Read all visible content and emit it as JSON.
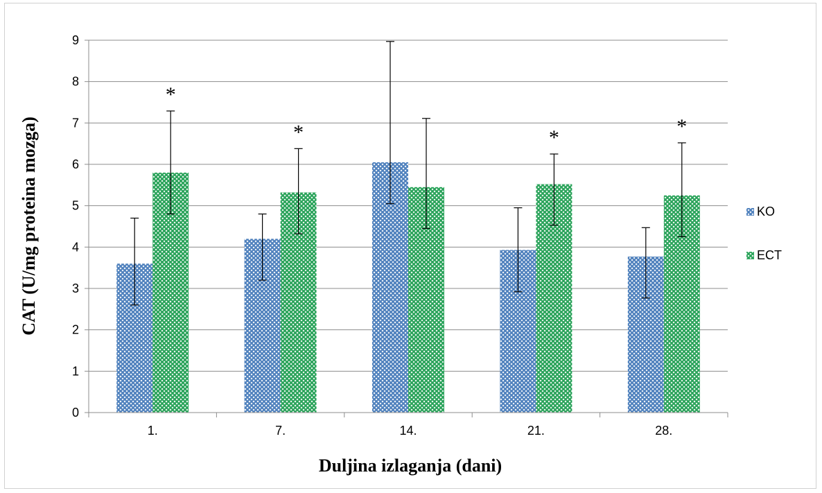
{
  "chart_data": {
    "type": "bar",
    "title": "",
    "xlabel": "Duljina izlaganja (dani)",
    "ylabel": "CAT (U/mg proteina mozga)",
    "ylim": [
      0,
      9
    ],
    "yticks": [
      "0",
      "1",
      "2",
      "3",
      "4",
      "5",
      "6",
      "7",
      "8",
      "9"
    ],
    "grid": true,
    "legend_position": "right",
    "categories": [
      "1.",
      "7.",
      "14.",
      "21.",
      "28."
    ],
    "series": [
      {
        "name": "KO",
        "color": "#4f81bd",
        "values": [
          3.6,
          4.2,
          6.05,
          3.93,
          3.77
        ],
        "error_low": [
          2.6,
          3.2,
          5.05,
          2.92,
          2.77
        ],
        "error_high": [
          4.7,
          4.8,
          8.97,
          4.95,
          4.47
        ]
      },
      {
        "name": "ECT",
        "color": "#2aa35a",
        "values": [
          5.8,
          5.32,
          5.45,
          5.52,
          5.25
        ],
        "error_low": [
          4.8,
          4.32,
          4.45,
          4.53,
          4.25
        ],
        "error_high": [
          7.29,
          6.38,
          7.11,
          6.25,
          6.52
        ]
      }
    ],
    "annotations": [
      {
        "category_index": 0,
        "text": "*"
      },
      {
        "category_index": 1,
        "text": "*"
      },
      {
        "category_index": 3,
        "text": "*"
      },
      {
        "category_index": 4,
        "text": "*"
      }
    ]
  }
}
